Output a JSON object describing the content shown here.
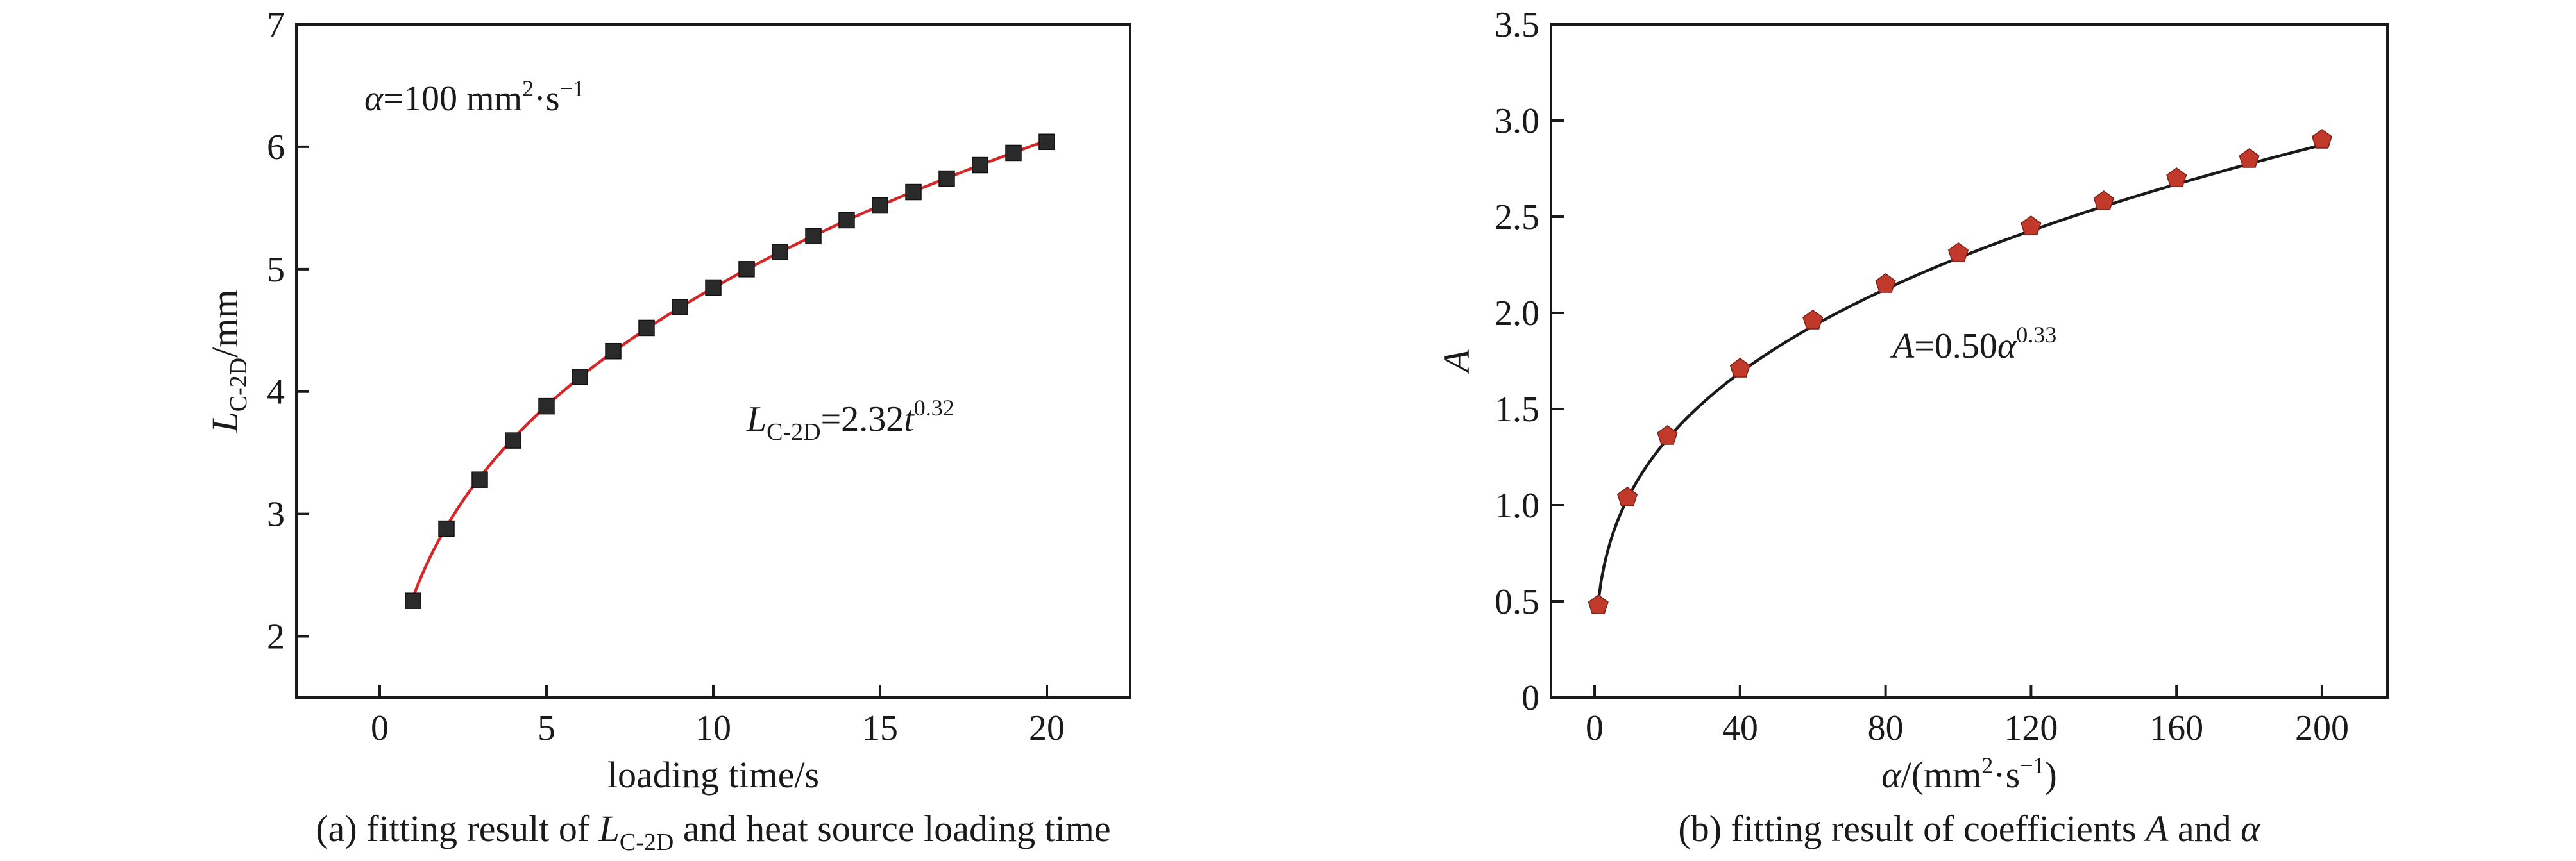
{
  "chart_data": [
    {
      "type": "scatter",
      "panel": "a",
      "caption": {
        "prefix": "(a) fitting result of ",
        "var": "L",
        "sub": "C-2D",
        "suffix": " and heat source loading time"
      },
      "xlabel": "loading time/s",
      "ylabel": {
        "var": "L",
        "sub": "C-2D",
        "suffix": "/mm"
      },
      "xlim": [
        -2.5,
        22.5
      ],
      "ylim": [
        1.5,
        7
      ],
      "xticks": [
        0,
        5,
        10,
        15,
        20
      ],
      "yticks": [
        2,
        3,
        4,
        5,
        6,
        7
      ],
      "annotation": {
        "var": "α",
        "text": "=100 mm",
        "sup1": "2",
        "mid": "·s",
        "sup2": "−1"
      },
      "fit_label": {
        "var": "L",
        "sub": "C-2D",
        "eq": "=2.32",
        "var2": "t",
        "sup": "0.32"
      },
      "fit": {
        "coef": 2.32,
        "exp": 0.32,
        "color": "#d62728"
      },
      "marker": {
        "shape": "square",
        "color": "#2a2a2a"
      },
      "x": [
        1,
        2,
        3,
        4,
        5,
        6,
        7,
        8,
        9,
        10,
        11,
        12,
        13,
        14,
        15,
        16,
        17,
        18,
        19,
        20
      ],
      "y": [
        2.29,
        2.88,
        3.28,
        3.6,
        3.88,
        4.12,
        4.33,
        4.52,
        4.69,
        4.85,
        5.0,
        5.14,
        5.27,
        5.4,
        5.52,
        5.63,
        5.74,
        5.85,
        5.95,
        6.04
      ]
    },
    {
      "type": "scatter",
      "panel": "b",
      "caption": {
        "prefix": "(b) fitting result of coefficients ",
        "var": "A",
        "mid": " and ",
        "var2": "α"
      },
      "xlabel": {
        "var": "α",
        "text": "/(mm",
        "sup1": "2",
        "mid": "·s",
        "sup2": "−1",
        "suffix": ")"
      },
      "ylabel": "A",
      "xlim": [
        -12,
        218
      ],
      "ylim": [
        0,
        3.5
      ],
      "xticks": [
        0,
        40,
        80,
        120,
        160,
        200
      ],
      "yticks": [
        0,
        0.5,
        1.0,
        1.5,
        2.0,
        2.5,
        3.0,
        3.5
      ],
      "ytick_labels": [
        "0",
        "0.5",
        "1.0",
        "1.5",
        "2.0",
        "2.5",
        "3.0",
        "3.5"
      ],
      "fit_label": {
        "var": "A",
        "eq": "=0.50",
        "var2": "α",
        "sup": "0.33"
      },
      "fit": {
        "coef": 0.5,
        "exp": 0.33,
        "color": "#1a1a1a"
      },
      "marker": {
        "shape": "pentagon",
        "color": "#c0392b"
      },
      "x": [
        1,
        9,
        20,
        40,
        60,
        80,
        100,
        120,
        140,
        160,
        180,
        200
      ],
      "y": [
        0.48,
        1.04,
        1.36,
        1.71,
        1.96,
        2.15,
        2.31,
        2.45,
        2.58,
        2.7,
        2.8,
        2.9
      ]
    }
  ]
}
